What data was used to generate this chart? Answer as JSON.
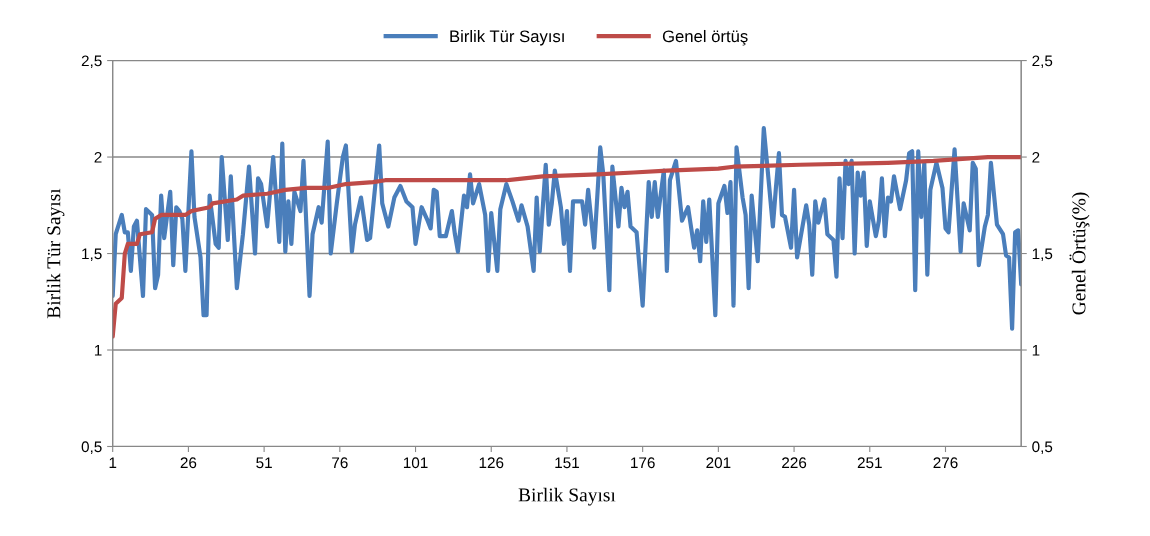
{
  "chart_data": {
    "type": "line",
    "xlabel": "Birlik Sayısı",
    "ylabel": "Birlik Tür Sayısı",
    "y2label": "Genel Örtüş(%)",
    "xlim": [
      1,
      301
    ],
    "xticks": [
      1,
      26,
      51,
      76,
      101,
      126,
      151,
      176,
      201,
      226,
      251,
      276
    ],
    "ylim": [
      0.5,
      2.5
    ],
    "yticks": [
      {
        "value": 0.5,
        "label": "0,5"
      },
      1,
      {
        "value": 1.5,
        "label": "1,5"
      },
      2,
      {
        "value": 2.5,
        "label": "2,5"
      }
    ],
    "y2lim": [
      0.5,
      2.5
    ],
    "y2ticks": [
      {
        "value": 0.5,
        "label": "0,5"
      },
      1,
      {
        "value": 1.5,
        "label": "1,5"
      },
      2,
      {
        "value": 2.5,
        "label": "2,5"
      }
    ],
    "grid": "y",
    "legend": "top",
    "line_style": "solid",
    "marker": "none",
    "series": [
      {
        "name": "Birlik Tür Sayısı",
        "color": "#4a7ebb",
        "x": [
          1,
          2,
          4,
          5,
          6,
          7,
          8,
          9,
          11,
          12,
          14,
          15,
          16,
          17,
          18,
          20,
          21,
          22,
          23,
          24,
          25,
          27,
          28,
          30,
          31,
          32,
          33,
          35,
          36,
          37,
          39,
          40,
          42,
          44,
          46,
          48,
          49,
          50,
          52,
          54,
          56,
          57,
          58,
          59,
          60,
          61,
          63,
          64,
          66,
          67,
          69,
          70,
          72,
          73,
          75,
          77,
          78,
          80,
          81,
          83,
          85,
          86,
          89,
          90,
          92,
          94,
          96,
          98,
          100,
          101,
          103,
          105,
          106,
          107,
          108,
          109,
          111,
          113,
          114,
          115,
          117,
          118,
          119,
          120,
          122,
          124,
          125,
          126,
          128,
          129,
          131,
          133,
          135,
          136,
          138,
          140,
          141,
          142,
          144,
          145,
          146,
          147,
          149,
          150,
          151,
          152,
          153,
          156,
          157,
          158,
          160,
          162,
          163,
          165,
          166,
          168,
          169,
          170,
          171,
          172,
          174,
          176,
          178,
          179,
          180,
          181,
          183,
          184,
          185,
          187,
          189,
          191,
          193,
          194,
          195,
          196,
          197,
          198,
          200,
          201,
          203,
          204,
          205,
          206,
          207,
          209,
          210,
          211,
          212,
          214,
          216,
          219,
          220,
          221,
          222,
          223,
          225,
          226,
          227,
          230,
          231,
          232,
          233,
          234,
          236,
          237,
          239,
          240,
          241,
          242,
          243,
          244,
          245,
          246,
          247,
          248,
          249,
          250,
          251,
          253,
          254,
          255,
          256,
          257,
          258,
          259,
          261,
          263,
          264,
          265,
          266,
          267,
          268,
          269,
          270,
          271,
          273,
          275,
          276,
          277,
          279,
          281,
          282,
          284,
          285,
          286,
          287,
          289,
          290,
          291,
          293,
          295,
          296,
          297,
          298,
          299,
          300,
          301
        ],
        "values": [
          1.28,
          1.6,
          1.7,
          1.61,
          1.61,
          1.41,
          1.64,
          1.67,
          1.28,
          1.73,
          1.7,
          1.32,
          1.39,
          1.8,
          1.58,
          1.82,
          1.44,
          1.74,
          1.72,
          1.68,
          1.41,
          2.03,
          1.69,
          1.48,
          1.18,
          1.18,
          1.8,
          1.55,
          1.53,
          2.0,
          1.57,
          1.9,
          1.32,
          1.6,
          1.95,
          1.5,
          1.89,
          1.86,
          1.64,
          2.0,
          1.56,
          2.07,
          1.51,
          1.77,
          1.55,
          1.82,
          1.72,
          1.98,
          1.28,
          1.6,
          1.74,
          1.66,
          2.08,
          1.5,
          1.76,
          2.0,
          2.06,
          1.51,
          1.65,
          1.79,
          1.57,
          1.58,
          2.06,
          1.76,
          1.64,
          1.79,
          1.85,
          1.77,
          1.74,
          1.55,
          1.74,
          1.67,
          1.63,
          1.83,
          1.82,
          1.59,
          1.59,
          1.72,
          1.6,
          1.51,
          1.8,
          1.74,
          1.91,
          1.76,
          1.86,
          1.7,
          1.41,
          1.71,
          1.41,
          1.73,
          1.86,
          1.77,
          1.67,
          1.75,
          1.64,
          1.41,
          1.79,
          1.51,
          1.96,
          1.65,
          1.76,
          1.93,
          1.74,
          1.55,
          1.72,
          1.41,
          1.77,
          1.77,
          1.65,
          1.83,
          1.53,
          2.05,
          1.91,
          1.31,
          1.95,
          1.64,
          1.84,
          1.74,
          1.82,
          1.64,
          1.61,
          1.23,
          1.87,
          1.69,
          1.87,
          1.69,
          1.93,
          1.41,
          1.88,
          1.98,
          1.67,
          1.74,
          1.53,
          1.62,
          1.46,
          1.77,
          1.56,
          1.78,
          1.18,
          1.76,
          1.85,
          1.71,
          1.87,
          1.23,
          2.05,
          1.79,
          1.7,
          1.32,
          1.8,
          1.46,
          2.15,
          1.64,
          1.84,
          2.02,
          1.7,
          1.69,
          1.53,
          1.83,
          1.48,
          1.75,
          1.65,
          1.39,
          1.77,
          1.66,
          1.78,
          1.6,
          1.57,
          1.38,
          1.89,
          1.58,
          1.98,
          1.86,
          1.98,
          1.5,
          1.92,
          1.8,
          1.92,
          1.54,
          1.77,
          1.59,
          1.67,
          1.89,
          1.59,
          1.79,
          1.77,
          1.9,
          1.73,
          1.88,
          2.02,
          2.03,
          1.31,
          2.03,
          1.69,
          1.97,
          1.39,
          1.83,
          1.97,
          1.84,
          1.63,
          1.61,
          2.04,
          1.51,
          1.76,
          1.62,
          1.97,
          1.94,
          1.44,
          1.64,
          1.7,
          1.97,
          1.65,
          1.6,
          1.49,
          1.48,
          1.11,
          1.61,
          1.62,
          1.34
        ]
      },
      {
        "name": "Genel örtüş",
        "color": "#be4b48",
        "axis": "y2",
        "x": [
          1,
          2,
          4,
          5,
          6,
          9,
          10,
          14,
          15,
          17,
          25,
          27,
          33,
          34,
          42,
          44,
          52,
          58,
          65,
          72,
          78,
          87,
          91,
          96,
          131,
          143,
          161,
          173,
          184,
          201,
          206,
          228,
          257,
          272,
          290,
          301
        ],
        "values": [
          1.07,
          1.24,
          1.27,
          1.5,
          1.55,
          1.55,
          1.6,
          1.61,
          1.68,
          1.7,
          1.7,
          1.72,
          1.74,
          1.76,
          1.78,
          1.8,
          1.81,
          1.83,
          1.84,
          1.84,
          1.86,
          1.87,
          1.88,
          1.88,
          1.88,
          1.9,
          1.91,
          1.92,
          1.93,
          1.94,
          1.95,
          1.96,
          1.97,
          1.98,
          2.0,
          2.0
        ]
      }
    ]
  }
}
